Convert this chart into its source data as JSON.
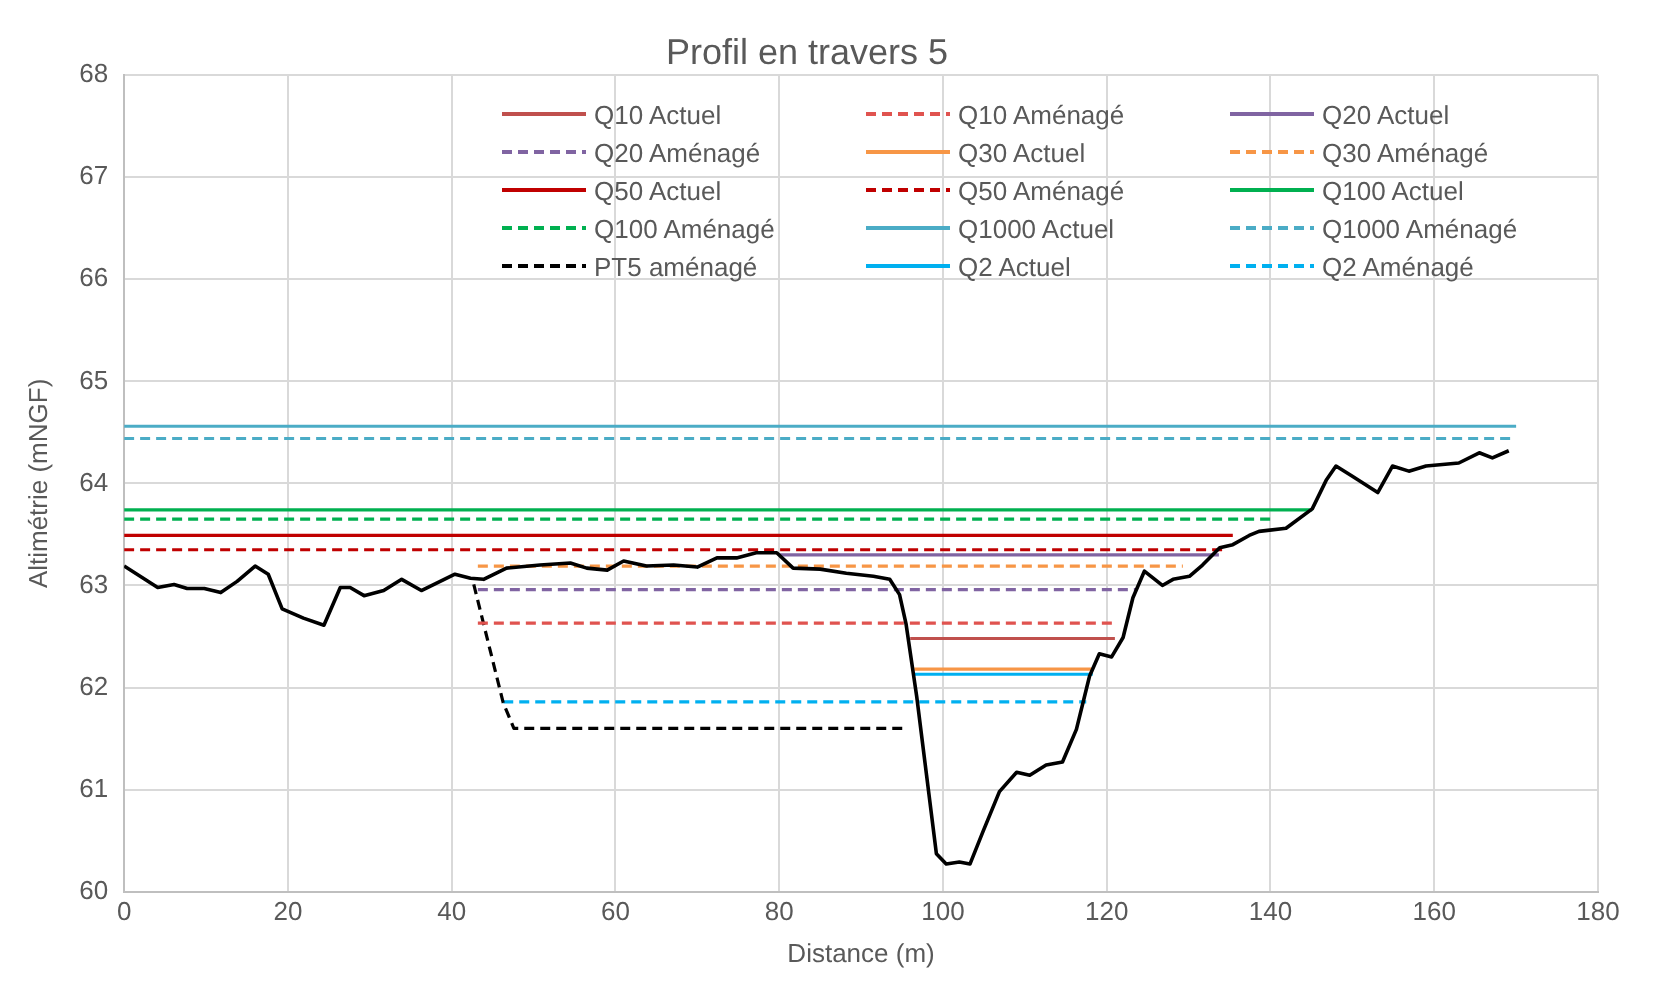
{
  "chart_data": {
    "type": "line",
    "title": "Profil en travers 5",
    "xlabel": "Distance (m)",
    "ylabel": "Altimétrie (mNGF)",
    "xlim": [
      0,
      180
    ],
    "xticks": [
      0,
      20,
      40,
      60,
      80,
      100,
      120,
      140,
      160,
      180
    ],
    "ylim": [
      60,
      68
    ],
    "yticks": [
      60,
      61,
      62,
      63,
      64,
      65,
      66,
      67,
      68
    ],
    "grid": true,
    "legend": "top right",
    "marker": "none",
    "series": [
      {
        "color": "#000000",
        "x": [
          0,
          4.1,
          6.1,
          7.7,
          9.8,
          11.8,
          13.8,
          16,
          17.6,
          19.3,
          21.9,
          24.4,
          26.4,
          27.6,
          29.3,
          31.7,
          33.9,
          36.3,
          38.6,
          40.4,
          42.3,
          43.9,
          46.7,
          50.8,
          54.5,
          56.5,
          59,
          61,
          63.8,
          67.1,
          70,
          72.4,
          74.8,
          77.2,
          79.7,
          81.7,
          85,
          88.2,
          91.5,
          93.5,
          94.7,
          95.5,
          96.8,
          98,
          99.2,
          100.4,
          102,
          103.3,
          104.9,
          106.9,
          109,
          110.6,
          112.6,
          114.6,
          116.3,
          117.9,
          119.1,
          120.6,
          122,
          123.2,
          124.6,
          126.8,
          128.1,
          130.1,
          131.7,
          133.8,
          135.4,
          137.4,
          138.6,
          141.9,
          145.1,
          146.8,
          148,
          150,
          153.1,
          154.9,
          156.9,
          159,
          163,
          165.5,
          167.1,
          169.1
        ],
        "values": [
          63.19,
          62.98,
          63.01,
          62.97,
          62.97,
          62.93,
          63.04,
          63.19,
          63.11,
          62.77,
          62.68,
          62.61,
          62.98,
          62.98,
          62.9,
          62.95,
          63.06,
          62.95,
          63.04,
          63.11,
          63.07,
          63.06,
          63.17,
          63.2,
          63.22,
          63.17,
          63.15,
          63.24,
          63.19,
          63.2,
          63.18,
          63.27,
          63.27,
          63.32,
          63.32,
          63.17,
          63.16,
          63.12,
          63.09,
          63.06,
          62.91,
          62.62,
          61.91,
          61.14,
          60.37,
          60.27,
          60.29,
          60.27,
          60.59,
          60.98,
          61.17,
          61.14,
          61.24,
          61.27,
          61.59,
          62.11,
          62.33,
          62.3,
          62.49,
          62.88,
          63.14,
          63,
          63.06,
          63.09,
          63.2,
          63.37,
          63.4,
          63.49,
          63.53,
          63.56,
          63.75,
          64.03,
          64.17,
          64.07,
          63.91,
          64.17,
          64.12,
          64.17,
          64.2,
          64.3,
          64.25,
          64.32
        ]
      },
      {
        "name": "Q10 Actuel",
        "color": "#c0504d",
        "line_style": "solid",
        "x": [
          96,
          121
        ],
        "values": [
          62.48,
          62.48
        ]
      },
      {
        "name": "Q10 Aménagé",
        "color": "#e0534f",
        "line_style": "dashed",
        "x": [
          43.2,
          121.2
        ],
        "values": [
          62.63,
          62.63
        ]
      },
      {
        "name": "Q20 Actuel",
        "color": "#8064a2",
        "line_style": "solid",
        "x": [
          80,
          133.7
        ],
        "values": [
          63.3,
          63.3
        ]
      },
      {
        "name": "Q20 Aménagé",
        "color": "#8064a2",
        "line_style": "dashed",
        "x": [
          43.2,
          123.7
        ],
        "values": [
          62.96,
          62.96
        ]
      },
      {
        "name": "Q30 Actuel",
        "color": "#f79646",
        "line_style": "solid",
        "x": [
          96.5,
          118.3
        ],
        "values": [
          62.18,
          62.18
        ]
      },
      {
        "name": "Q30 Aménagé",
        "color": "#f79646",
        "line_style": "dashed",
        "x": [
          43.2,
          129.3
        ],
        "values": [
          63.19,
          63.19
        ]
      },
      {
        "name": "Q50 Actuel",
        "color": "#c00000",
        "line_style": "solid",
        "x": [
          0,
          135.4
        ],
        "values": [
          63.49,
          63.49
        ]
      },
      {
        "name": "Q50 Aménagé",
        "color": "#c00000",
        "line_style": "dashed",
        "x": [
          0,
          134.6
        ],
        "values": [
          63.35,
          63.35
        ]
      },
      {
        "name": "Q100 Actuel",
        "color": "#00b050",
        "line_style": "solid",
        "x": [
          0,
          145.1
        ],
        "values": [
          63.74,
          63.74
        ]
      },
      {
        "name": "Q100 Aménagé",
        "color": "#00b050",
        "line_style": "dashed",
        "x": [
          0,
          140.6
        ],
        "values": [
          63.65,
          63.65
        ]
      },
      {
        "name": "Q1000 Actuel",
        "color": "#4bacc6",
        "line_style": "solid",
        "x": [
          0,
          170
        ],
        "values": [
          64.56,
          64.56
        ]
      },
      {
        "name": "Q1000 Aménagé",
        "color": "#4bacc6",
        "line_style": "dashed",
        "x": [
          0,
          170
        ],
        "values": [
          64.44,
          64.44
        ]
      },
      {
        "name": "PT5 aménagé",
        "color": "#000000",
        "line_style": "dashed",
        "x": [
          42.7,
          46.3,
          47.6,
          95.6
        ],
        "values": [
          63.01,
          61.85,
          61.6,
          61.6
        ]
      },
      {
        "name": "Q2 Actuel",
        "color": "#00b0f0",
        "line_style": "solid",
        "x": [
          96.3,
          118.3
        ],
        "values": [
          62.13,
          62.13
        ]
      },
      {
        "name": "Q2 Aménagé",
        "color": "#00b0f0",
        "line_style": "dashed",
        "x": [
          46.3,
          117.5
        ],
        "values": [
          61.86,
          61.86
        ]
      }
    ]
  }
}
